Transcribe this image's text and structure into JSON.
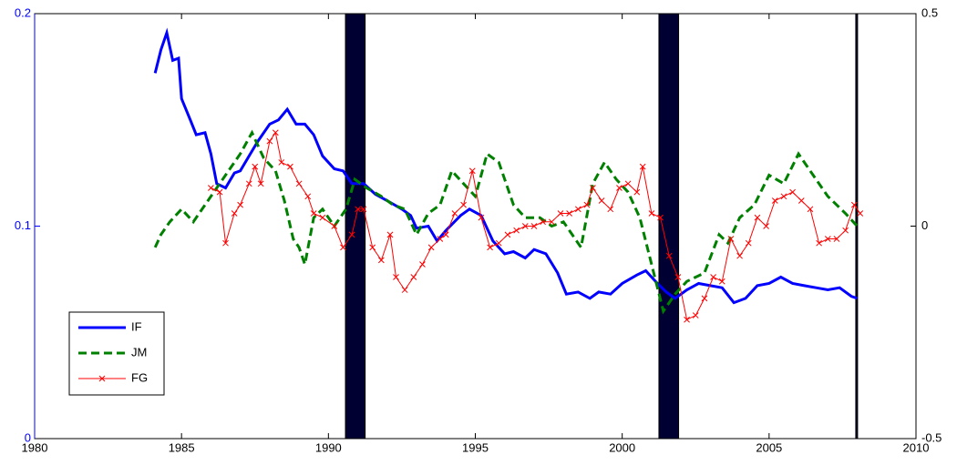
{
  "chart_data": {
    "type": "line",
    "xlim": [
      1980,
      2010
    ],
    "xticks": [
      1980,
      1985,
      1990,
      1995,
      2000,
      2005,
      2010
    ],
    "ylim": [
      0,
      0.2
    ],
    "yticks": [
      0,
      0.1,
      0.2
    ],
    "y2lim": [
      -0.5,
      0.5
    ],
    "y2ticks": [
      -0.5,
      0,
      0.5
    ],
    "shading_color": "#000033",
    "shading": [
      [
        1990.58,
        1991.25
      ],
      [
        2001.25,
        2001.92
      ],
      [
        2007.95,
        2008.0
      ]
    ],
    "legend": "lower left",
    "series": [
      {
        "name": "IF",
        "color": "#0000ff",
        "style": "solid",
        "axis": "y",
        "x": [
          1984.1,
          1984.3,
          1984.5,
          1984.7,
          1984.9,
          1985.0,
          1985.3,
          1985.5,
          1985.8,
          1986.0,
          1986.2,
          1986.5,
          1986.8,
          1987.0,
          1987.3,
          1987.6,
          1988.0,
          1988.3,
          1988.6,
          1988.9,
          1989.2,
          1989.5,
          1989.8,
          1990.2,
          1990.5,
          1990.8,
          1991.2,
          1991.6,
          1992.0,
          1992.5,
          1992.8,
          1993.0,
          1993.4,
          1993.7,
          1994.0,
          1994.5,
          1994.8,
          1995.2,
          1995.6,
          1996.0,
          1996.3,
          1996.7,
          1997.0,
          1997.4,
          1997.8,
          1998.1,
          1998.5,
          1998.9,
          1999.2,
          1999.6,
          2000.0,
          2000.5,
          2000.8,
          2001.2,
          2001.5,
          2001.8,
          2002.2,
          2002.6,
          2003.0,
          2003.4,
          2003.8,
          2004.2,
          2004.6,
          2005.0,
          2005.4,
          2005.8,
          2006.2,
          2006.6,
          2007.0,
          2007.4,
          2007.8,
          2008.0
        ],
        "values": [
          0.172,
          0.183,
          0.191,
          0.178,
          0.179,
          0.16,
          0.15,
          0.143,
          0.144,
          0.134,
          0.12,
          0.118,
          0.125,
          0.126,
          0.133,
          0.14,
          0.148,
          0.15,
          0.155,
          0.148,
          0.148,
          0.143,
          0.133,
          0.127,
          0.126,
          0.12,
          0.12,
          0.115,
          0.112,
          0.108,
          0.105,
          0.099,
          0.1,
          0.093,
          0.098,
          0.105,
          0.108,
          0.105,
          0.093,
          0.087,
          0.088,
          0.085,
          0.089,
          0.087,
          0.078,
          0.068,
          0.069,
          0.066,
          0.069,
          0.068,
          0.073,
          0.077,
          0.079,
          0.073,
          0.069,
          0.066,
          0.07,
          0.073,
          0.072,
          0.071,
          0.064,
          0.066,
          0.072,
          0.073,
          0.076,
          0.073,
          0.072,
          0.071,
          0.07,
          0.071,
          0.067,
          0.066
        ]
      },
      {
        "name": "JM",
        "color": "#008000",
        "style": "dashed",
        "axis": "y2",
        "x": [
          1984.1,
          1984.3,
          1984.6,
          1985.0,
          1985.4,
          1985.8,
          1986.2,
          1986.6,
          1987.0,
          1987.4,
          1987.8,
          1988.2,
          1988.5,
          1988.8,
          1989.0,
          1989.2,
          1989.5,
          1989.8,
          1990.2,
          1990.6,
          1990.9,
          1991.3,
          1991.8,
          1992.2,
          1992.6,
          1993.0,
          1993.4,
          1993.8,
          1994.2,
          1994.6,
          1995.0,
          1995.4,
          1995.8,
          1996.3,
          1996.7,
          1997.2,
          1997.6,
          1998.0,
          1998.6,
          1999.0,
          1999.4,
          1999.8,
          2000.2,
          2000.6,
          2001.0,
          2001.4,
          2001.8,
          2002.2,
          2002.8,
          2003.3,
          2003.6,
          2004.0,
          2004.5,
          2005.0,
          2005.5,
          2006.0,
          2006.5,
          2007.0,
          2007.6,
          2008.0
        ],
        "values": [
          -0.05,
          -0.02,
          0.01,
          0.04,
          0.01,
          0.05,
          0.09,
          0.13,
          0.17,
          0.22,
          0.16,
          0.13,
          0.06,
          -0.03,
          -0.05,
          -0.09,
          0.02,
          0.04,
          0.0,
          0.04,
          0.11,
          0.09,
          0.07,
          0.05,
          0.04,
          -0.02,
          0.03,
          0.05,
          0.13,
          0.1,
          0.07,
          0.17,
          0.15,
          0.05,
          0.02,
          0.02,
          0.0,
          0.01,
          -0.05,
          0.1,
          0.15,
          0.11,
          0.08,
          0.02,
          -0.09,
          -0.2,
          -0.16,
          -0.13,
          -0.11,
          -0.02,
          -0.04,
          0.02,
          0.05,
          0.12,
          0.1,
          0.17,
          0.12,
          0.07,
          0.03,
          0.0
        ]
      },
      {
        "name": "FG",
        "color": "#ff0000",
        "style": "marked",
        "axis": "y2",
        "x": [
          1986.0,
          1986.3,
          1986.5,
          1986.8,
          1987.0,
          1987.3,
          1987.5,
          1987.7,
          1988.0,
          1988.2,
          1988.4,
          1988.7,
          1989.0,
          1989.3,
          1989.5,
          1989.8,
          1990.2,
          1990.5,
          1990.8,
          1991.0,
          1991.2,
          1991.5,
          1991.8,
          1992.1,
          1992.3,
          1992.6,
          1992.9,
          1993.2,
          1993.5,
          1993.8,
          1994.0,
          1994.3,
          1994.6,
          1994.9,
          1995.2,
          1995.5,
          1995.8,
          1996.1,
          1996.4,
          1996.7,
          1997.0,
          1997.3,
          1997.6,
          1997.9,
          1998.2,
          1998.5,
          1998.8,
          1999.0,
          1999.3,
          1999.6,
          1999.9,
          2000.2,
          2000.5,
          2000.7,
          2001.0,
          2001.3,
          2001.6,
          2001.9,
          2002.2,
          2002.5,
          2002.8,
          2003.1,
          2003.4,
          2003.7,
          2004.0,
          2004.3,
          2004.6,
          2004.9,
          2005.2,
          2005.5,
          2005.8,
          2006.1,
          2006.4,
          2006.7,
          2007.0,
          2007.3,
          2007.6,
          2007.9,
          2008.1
        ],
        "values": [
          0.09,
          0.08,
          -0.04,
          0.03,
          0.05,
          0.1,
          0.14,
          0.1,
          0.2,
          0.22,
          0.15,
          0.14,
          0.1,
          0.07,
          0.03,
          0.02,
          0.0,
          -0.05,
          -0.02,
          0.04,
          0.04,
          -0.05,
          -0.08,
          -0.02,
          -0.12,
          -0.15,
          -0.12,
          -0.09,
          -0.05,
          -0.03,
          -0.02,
          0.03,
          0.05,
          0.13,
          0.02,
          -0.05,
          -0.04,
          -0.02,
          -0.01,
          0.0,
          0.0,
          0.01,
          0.01,
          0.03,
          0.03,
          0.04,
          0.05,
          0.09,
          0.06,
          0.04,
          0.09,
          0.1,
          0.08,
          0.14,
          0.03,
          0.02,
          -0.07,
          -0.12,
          -0.22,
          -0.21,
          -0.17,
          -0.12,
          -0.13,
          -0.03,
          -0.07,
          -0.04,
          0.02,
          0.0,
          0.06,
          0.07,
          0.08,
          0.06,
          0.04,
          -0.04,
          -0.03,
          -0.03,
          -0.01,
          0.05,
          0.03
        ]
      }
    ]
  }
}
